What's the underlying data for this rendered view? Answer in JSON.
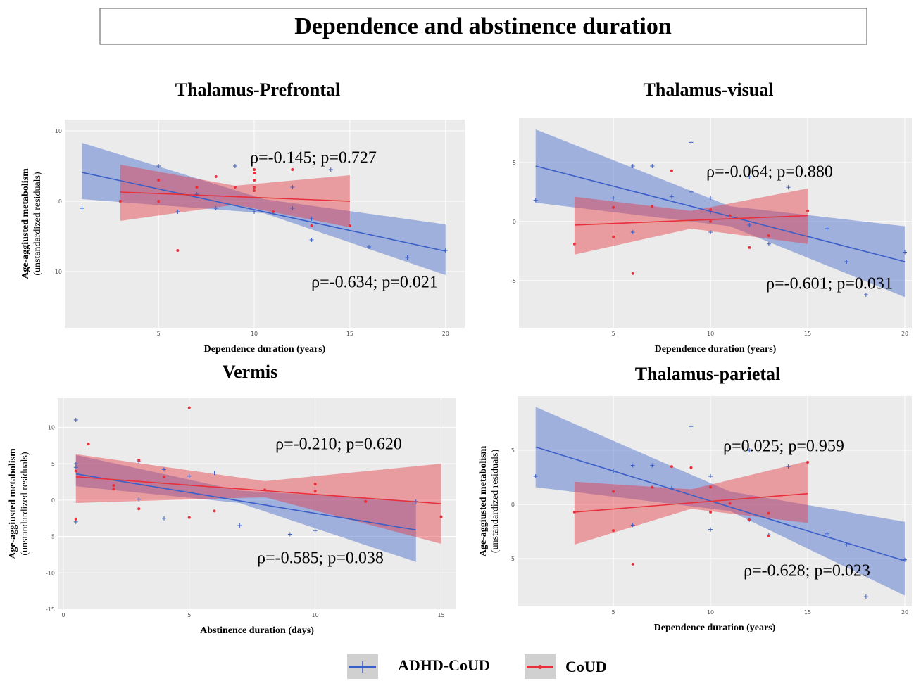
{
  "title": "Dependence and abstinence duration",
  "chart_data": [
    {
      "type": "scatter",
      "title": "Thalamus-Prefrontal",
      "x_label": "Dependence duration (years)",
      "y_label": [
        "Age-aggiusted metabolism",
        "(unstandardized residuals)"
      ],
      "xlim": [
        0.1,
        21
      ],
      "ylim": [
        -18,
        11.6
      ],
      "xticks": [
        5,
        10,
        15,
        20
      ],
      "yticks": [
        -10,
        0,
        10
      ],
      "grid": true,
      "annotations": [
        "ρ=-0.145; p=0.727",
        "ρ=-0.634; p=0.021"
      ],
      "series": [
        {
          "name": "ADHD-CoUD",
          "color": "#3a5fc8",
          "marker": "plus",
          "x": [
            1,
            5,
            6,
            7,
            8,
            9,
            10,
            12,
            12,
            13,
            13,
            14,
            16,
            18,
            20
          ],
          "y": [
            -1,
            5,
            -1.5,
            1,
            -1,
            5,
            -1.5,
            2,
            -1,
            -5.5,
            -2.5,
            4.5,
            -6.5,
            -8,
            -7
          ],
          "fit": {
            "x": [
              1,
              20
            ],
            "y": [
              4.1,
              -7.1
            ]
          },
          "band": {
            "x": [
              1,
              10.5,
              20
            ],
            "lower": [
              0.3,
              -1.7,
              -10.5
            ],
            "upper": [
              8.3,
              0.3,
              -3.3
            ]
          }
        },
        {
          "name": "CoUD",
          "color": "#e8303a",
          "marker": "dot",
          "x": [
            3,
            5,
            5,
            6,
            7,
            8,
            9,
            10,
            10,
            10,
            10,
            10,
            11,
            12,
            13,
            15
          ],
          "y": [
            0,
            3,
            0,
            -7,
            2,
            3.5,
            2,
            4.5,
            4,
            3,
            1.5,
            2,
            -1.5,
            4.5,
            -3.5,
            -3.5
          ],
          "fit": {
            "x": [
              3,
              15
            ],
            "y": [
              1.3,
              0
            ]
          },
          "band": {
            "x": [
              3,
              9,
              15
            ],
            "lower": [
              -2.8,
              -0.5,
              -3.7
            ],
            "upper": [
              5.2,
              2.2,
              3.7
            ]
          }
        }
      ]
    },
    {
      "type": "scatter",
      "title": "Thalamus-visual",
      "x_label": "Dependence duration (years)",
      "xlim": [
        0.14,
        20.36
      ],
      "ylim": [
        -9,
        8.75
      ],
      "xticks": [
        5,
        10,
        15,
        20
      ],
      "yticks": [
        -5,
        0,
        5
      ],
      "grid": true,
      "annotations": [
        "ρ=-0.064; p=0.880",
        "ρ=-0.601; p=0.031"
      ],
      "series": [
        {
          "name": "ADHD-CoUD",
          "color": "#3a5fc8",
          "marker": "plus",
          "x": [
            1,
            5,
            6,
            6,
            7,
            8,
            9,
            9,
            10,
            10,
            10,
            12,
            12,
            13,
            14,
            16,
            17,
            18,
            20
          ],
          "y": [
            1.8,
            2,
            4.7,
            -0.9,
            4.7,
            2.1,
            6.7,
            2.5,
            2,
            -0.9,
            0.8,
            3.8,
            -0.3,
            -1.9,
            2.9,
            -0.6,
            -3.4,
            -6.2,
            -2.6
          ],
          "fit": {
            "x": [
              1,
              20
            ],
            "y": [
              4.7,
              -3.4
            ]
          },
          "band": {
            "x": [
              1,
              11,
              20
            ],
            "lower": [
              1.6,
              -0.4,
              -6.4
            ],
            "upper": [
              7.8,
              1.3,
              -0.4
            ]
          }
        },
        {
          "name": "CoUD",
          "color": "#e8303a",
          "marker": "dot",
          "x": [
            3,
            5,
            5,
            6,
            7,
            8,
            10,
            10,
            11,
            12,
            13,
            15
          ],
          "y": [
            -1.9,
            1.2,
            -1.3,
            -4.4,
            1.3,
            4.3,
            1,
            0,
            0.5,
            -2.2,
            -1.2,
            0.9
          ],
          "fit": {
            "x": [
              3,
              15
            ],
            "y": [
              -0.3,
              0.5
            ]
          },
          "band": {
            "x": [
              3,
              9,
              15
            ],
            "lower": [
              -2.8,
              -0.6,
              -1.9
            ],
            "upper": [
              2.1,
              0.9,
              2.8
            ]
          }
        }
      ]
    },
    {
      "type": "scatter",
      "title": "Vermis",
      "x_label": "Abstinence duration (days)",
      "y_label": [
        "Age-aggiusted metabolism",
        "(unstandardized residuals)"
      ],
      "xlim": [
        -0.22,
        15.6
      ],
      "ylim": [
        -15,
        14
      ],
      "xticks": [
        0,
        5,
        10,
        15
      ],
      "yticks": [
        -15,
        -10,
        -5,
        0,
        5,
        10
      ],
      "grid": true,
      "annotations": [
        "ρ=-0.210; p=0.620",
        "ρ=-0.585; p=0.038"
      ],
      "series": [
        {
          "name": "ADHD-CoUD",
          "color": "#3a5fc8",
          "marker": "plus",
          "x": [
            0.5,
            0.5,
            0.5,
            0.5,
            3,
            3,
            4,
            4,
            5,
            6,
            7,
            9,
            10,
            14
          ],
          "y": [
            11,
            5,
            4.5,
            -3,
            5.3,
            0.1,
            4.2,
            -2.5,
            3.3,
            3.7,
            -3.5,
            -4.7,
            -4.2,
            -0.2
          ],
          "fit": {
            "x": [
              0.5,
              14
            ],
            "y": [
              3.6,
              -4.1
            ]
          },
          "band": {
            "x": [
              0.5,
              7,
              14
            ],
            "lower": [
              1.9,
              -0.4,
              -8.5
            ],
            "upper": [
              6.2,
              1.3,
              -0.1
            ]
          }
        },
        {
          "name": "CoUD",
          "color": "#e8303a",
          "marker": "dot",
          "x": [
            0.5,
            0.5,
            1,
            2,
            2,
            3,
            3,
            4,
            5,
            5,
            6,
            8,
            10,
            10,
            12,
            15
          ],
          "y": [
            4,
            -2.6,
            7.7,
            2,
            1.5,
            5.5,
            -1.2,
            3.2,
            12.7,
            -2.4,
            -1.5,
            1.4,
            2.2,
            1.2,
            -0.2,
            -2.3
          ],
          "fit": {
            "x": [
              0.5,
              15
            ],
            "y": [
              3.2,
              -0.5
            ]
          },
          "band": {
            "x": [
              0.5,
              8,
              15
            ],
            "lower": [
              -0.4,
              0.4,
              -6
            ],
            "upper": [
              6.3,
              2.6,
              5
            ]
          }
        }
      ]
    },
    {
      "type": "scatter",
      "title": "Thalamus-parietal",
      "x_label": "Dependence duration (years)",
      "y_label": [
        "Age-aggiusted metabolism",
        "(unstandardized residuals)"
      ],
      "xlim": [
        0.07,
        20.36
      ],
      "ylim": [
        -9.4,
        10
      ],
      "xticks": [
        5,
        10,
        15,
        20
      ],
      "yticks": [
        -5,
        0,
        5
      ],
      "grid": true,
      "annotations": [
        "ρ=0.025; p=0.959",
        "ρ=-0.628; p=0.023"
      ],
      "series": [
        {
          "name": "ADHD-CoUD",
          "color": "#3a5fc8",
          "marker": "plus",
          "x": [
            1,
            5,
            6,
            6,
            7,
            8,
            9,
            10,
            10,
            12,
            12,
            13,
            14,
            16,
            17,
            18,
            20
          ],
          "y": [
            2.6,
            3.1,
            3.6,
            -1.9,
            3.6,
            1.5,
            7.2,
            2.6,
            -2.3,
            5,
            -1.4,
            -2.8,
            3.5,
            -2.7,
            -3.7,
            -8.5,
            -5.1
          ],
          "fit": {
            "x": [
              1,
              20
            ],
            "y": [
              5.3,
              -5.2
            ]
          },
          "band": {
            "x": [
              1,
              11,
              20
            ],
            "lower": [
              1.6,
              -0.6,
              -8.4
            ],
            "upper": [
              9,
              1.2,
              -1.6
            ]
          }
        },
        {
          "name": "CoUD",
          "color": "#e8303a",
          "marker": "dot",
          "x": [
            3,
            5,
            5,
            6,
            7,
            8,
            9,
            10,
            10,
            11,
            12,
            13,
            13,
            15
          ],
          "y": [
            -0.7,
            1.2,
            -2.4,
            -5.5,
            1.6,
            3.5,
            3.4,
            1.6,
            -0.7,
            0.1,
            -1.4,
            -0.8,
            -2.9,
            3.9
          ],
          "fit": {
            "x": [
              3,
              15
            ],
            "y": [
              -0.7,
              1
            ]
          },
          "band": {
            "x": [
              3,
              9,
              15
            ],
            "lower": [
              -3.7,
              -0.4,
              -1.7
            ],
            "upper": [
              2.1,
              1.4,
              4
            ]
          }
        }
      ]
    }
  ]
}
